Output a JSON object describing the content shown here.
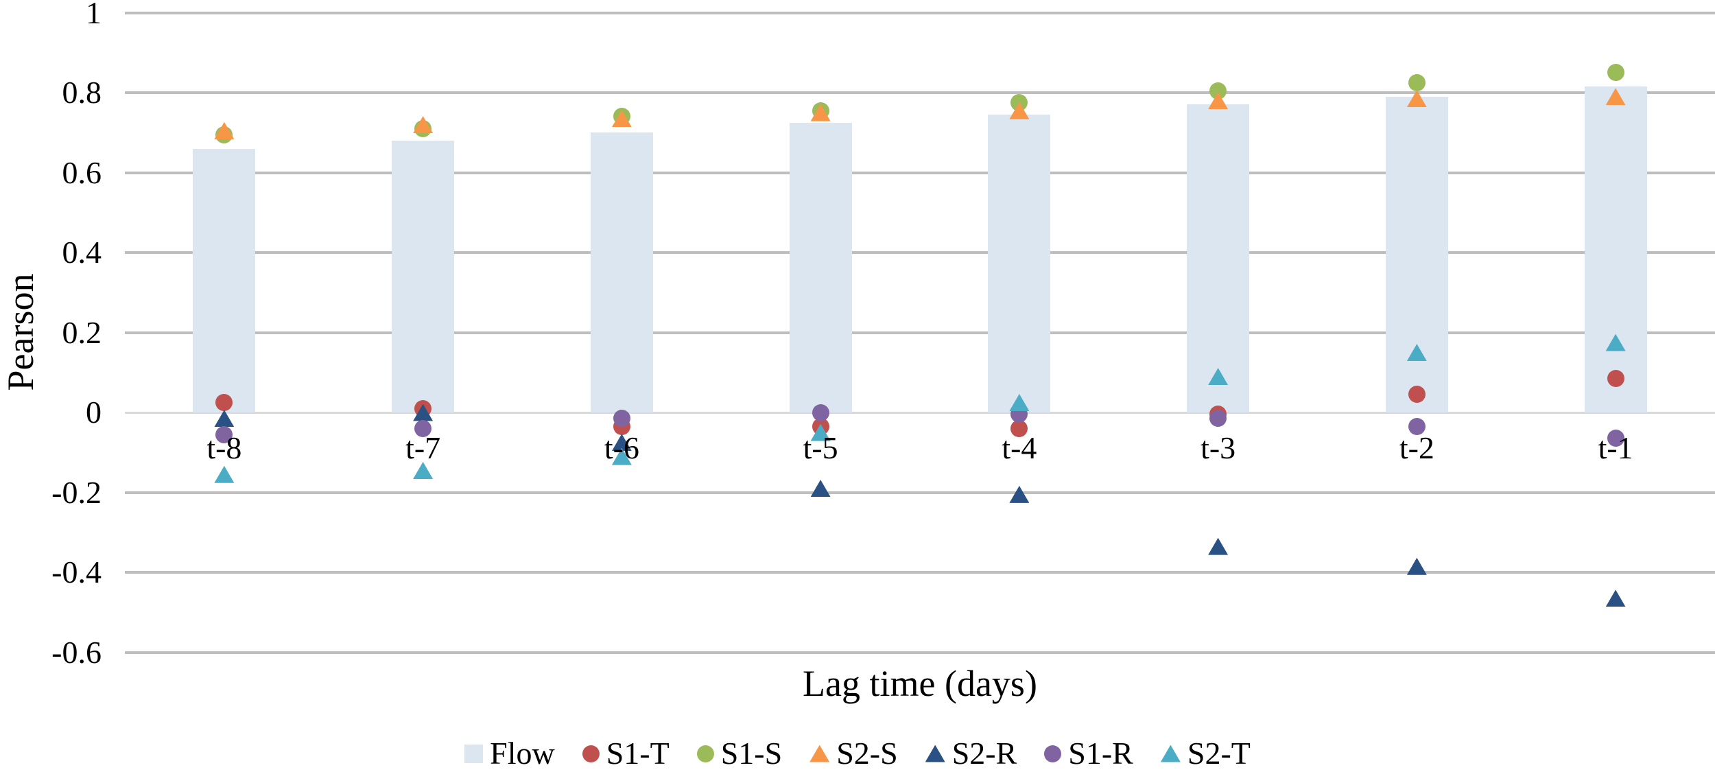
{
  "chart_data": {
    "type": "bar+scatter",
    "title": "",
    "xlabel": "Lag time (days)",
    "ylabel": "Pearson",
    "categories": [
      "t-8",
      "t-7",
      "t-6",
      "t-5",
      "t-4",
      "t-3",
      "t-2",
      "t-1"
    ],
    "ylim": [
      -0.6,
      1.0
    ],
    "y_ticks": [
      1,
      0.8,
      0.6,
      0.4,
      0.2,
      0,
      -0.2,
      -0.4,
      -0.6
    ],
    "y_tick_labels": [
      "1",
      "0.8",
      "0.6",
      "0.4",
      "0.2",
      "0",
      "-0.2",
      "-0.4",
      "-0.6"
    ],
    "grid": true,
    "legend_position": "bottom",
    "colors": {
      "background": "#FFFFFF",
      "text": "#000000",
      "gridline": "#BEBEBE",
      "zero_axis_line": "#D9D9D9",
      "flow_bar": "#DCE6F1"
    },
    "bar_series": {
      "name": "Flow",
      "color": "#DCE6F1",
      "values": [
        0.66,
        0.68,
        0.7,
        0.725,
        0.745,
        0.77,
        0.79,
        0.815
      ]
    },
    "scatter_series": [
      {
        "name": "S1-T",
        "marker": "circle",
        "color": "#C0504D",
        "values": [
          0.025,
          0.01,
          -0.035,
          -0.035,
          -0.04,
          -0.005,
          0.045,
          0.085
        ]
      },
      {
        "name": "S1-S",
        "marker": "circle",
        "color": "#9BBB59",
        "values": [
          0.695,
          0.71,
          0.74,
          0.755,
          0.775,
          0.805,
          0.825,
          0.85
        ]
      },
      {
        "name": "S2-S",
        "marker": "triangle",
        "color": "#F79646",
        "values": [
          0.705,
          0.72,
          0.735,
          0.75,
          0.755,
          0.78,
          0.785,
          0.79
        ]
      },
      {
        "name": "S2-R",
        "marker": "triangle",
        "color": "#2A5183",
        "values": [
          -0.015,
          0.0,
          -0.075,
          -0.19,
          -0.205,
          -0.335,
          -0.385,
          -0.465
        ]
      },
      {
        "name": "S1-R",
        "marker": "circle",
        "color": "#8064A2",
        "values": [
          -0.055,
          -0.04,
          -0.015,
          0.0,
          -0.005,
          -0.015,
          -0.035,
          -0.065
        ]
      },
      {
        "name": "S2-T",
        "marker": "triangle",
        "color": "#4BACC6",
        "values": [
          -0.155,
          -0.145,
          -0.11,
          -0.05,
          0.025,
          0.09,
          0.15,
          0.175
        ]
      }
    ],
    "legend_order": [
      "Flow",
      "S1-T",
      "S1-S",
      "S2-S",
      "S2-R",
      "S1-R",
      "S2-T"
    ]
  }
}
